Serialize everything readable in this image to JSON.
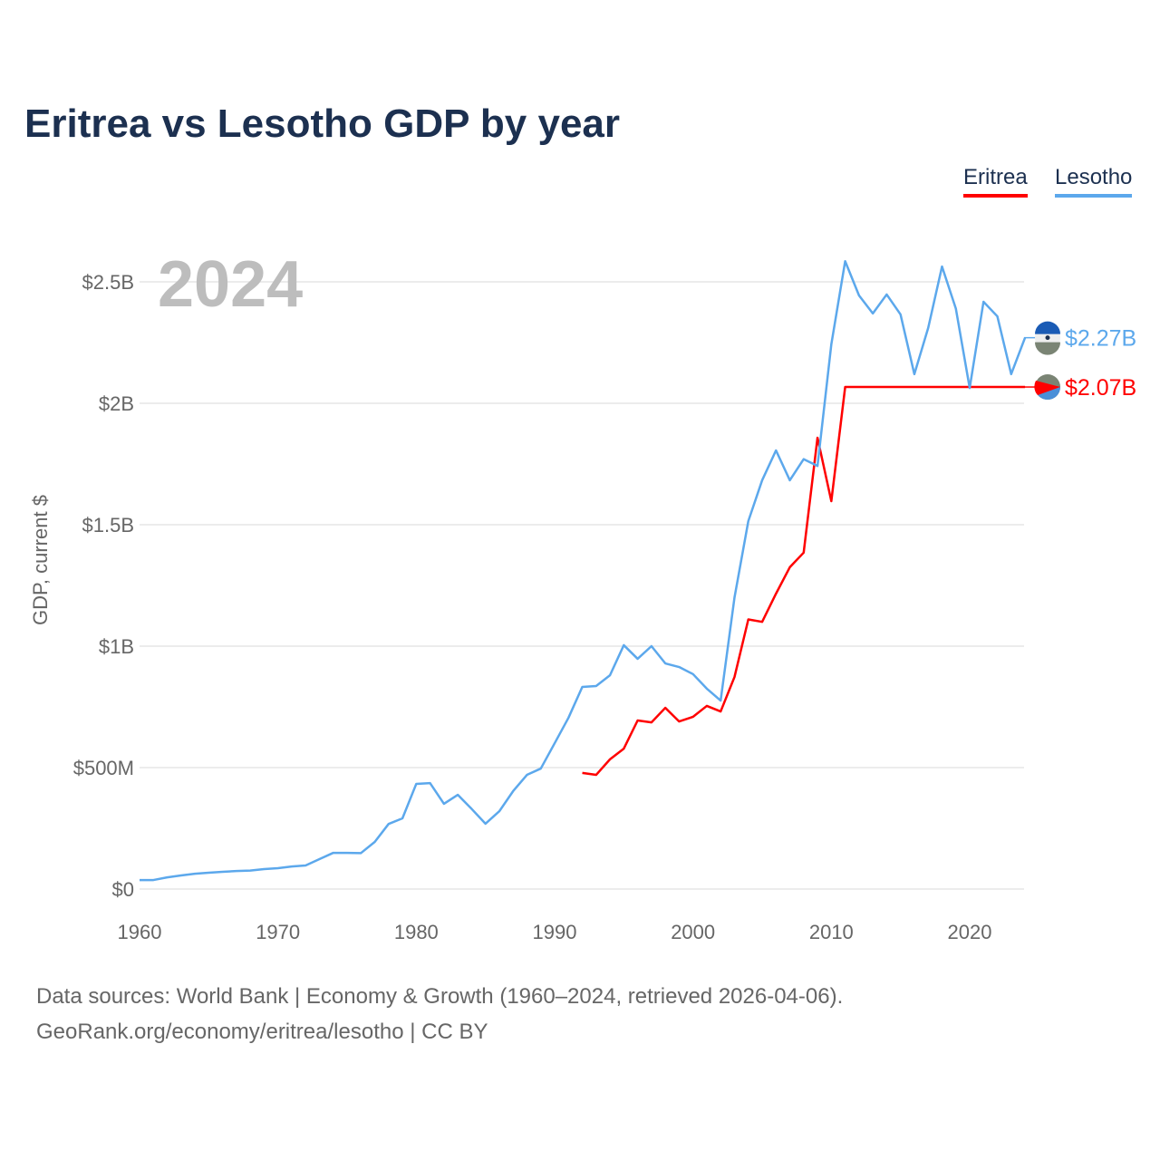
{
  "title": "Eritrea vs Lesotho GDP by year",
  "chart_data": {
    "type": "line",
    "title": "Eritrea vs Lesotho GDP by year",
    "ylabel": "GDP, current $",
    "xlabel": "",
    "xlim": [
      1960,
      2024
    ],
    "ylim": [
      0,
      2.6
    ],
    "y_units": "billions USD",
    "x_ticks": [
      1960,
      1970,
      1980,
      1990,
      2000,
      2010,
      2020
    ],
    "x_tick_labels": [
      "1960",
      "1970",
      "1980",
      "1990",
      "2000",
      "2010",
      "2020"
    ],
    "y_ticks": [
      0,
      0.5,
      1,
      1.5,
      2,
      2.5
    ],
    "y_tick_labels": [
      "$0",
      "$500M",
      "$1B",
      "$1.5B",
      "$2B",
      "$2.5B"
    ],
    "grid": true,
    "legend_placement": "top-right",
    "year_annotation": "2024",
    "series": [
      {
        "name": "Eritrea",
        "color": "#ff0000",
        "end_label": "$2.07B",
        "x": [
          1992,
          1993,
          1994,
          1995,
          1996,
          1997,
          1998,
          1999,
          2000,
          2001,
          2002,
          2003,
          2004,
          2005,
          2006,
          2007,
          2008,
          2009,
          2010,
          2011,
          2024
        ],
        "values": [
          0.478,
          0.47,
          0.534,
          0.578,
          0.694,
          0.686,
          0.746,
          0.69,
          0.709,
          0.754,
          0.731,
          0.873,
          1.11,
          1.1,
          1.216,
          1.325,
          1.385,
          1.858,
          1.597,
          2.067,
          2.067
        ]
      },
      {
        "name": "Lesotho",
        "color": "#5ca8ec",
        "end_label": "$2.27B",
        "x": [
          1960,
          1961,
          1962,
          1963,
          1964,
          1965,
          1966,
          1967,
          1968,
          1969,
          1970,
          1971,
          1972,
          1973,
          1974,
          1975,
          1976,
          1977,
          1978,
          1979,
          1980,
          1981,
          1982,
          1983,
          1984,
          1985,
          1986,
          1987,
          1988,
          1989,
          1990,
          1991,
          1992,
          1993,
          1994,
          1995,
          1996,
          1997,
          1998,
          1999,
          2000,
          2001,
          2002,
          2003,
          2004,
          2005,
          2006,
          2007,
          2008,
          2009,
          2010,
          2011,
          2012,
          2013,
          2014,
          2015,
          2016,
          2017,
          2018,
          2019,
          2020,
          2021,
          2022,
          2023,
          2024
        ],
        "values": [
          0.037,
          0.037,
          0.048,
          0.056,
          0.063,
          0.067,
          0.071,
          0.074,
          0.076,
          0.082,
          0.086,
          0.093,
          0.097,
          0.123,
          0.149,
          0.149,
          0.148,
          0.194,
          0.268,
          0.291,
          0.433,
          0.436,
          0.351,
          0.388,
          0.33,
          0.269,
          0.32,
          0.403,
          0.47,
          0.496,
          0.6,
          0.705,
          0.832,
          0.836,
          0.88,
          1.004,
          0.948,
          1.0,
          0.929,
          0.914,
          0.885,
          0.825,
          0.776,
          1.2,
          1.515,
          1.683,
          1.806,
          1.683,
          1.77,
          1.742,
          2.243,
          2.585,
          2.444,
          2.37,
          2.448,
          2.366,
          2.12,
          2.31,
          2.563,
          2.39,
          2.063,
          2.418,
          2.358,
          2.12,
          2.27
        ]
      }
    ]
  },
  "legend": {
    "eritrea": "Eritrea",
    "lesotho": "Lesotho"
  },
  "footer": {
    "line1": "Data sources: World Bank | Economy & Growth (1960–2024, retrieved 2026-04-06).",
    "line2": "GeoRank.org/economy/eritrea/lesotho | CC BY"
  }
}
